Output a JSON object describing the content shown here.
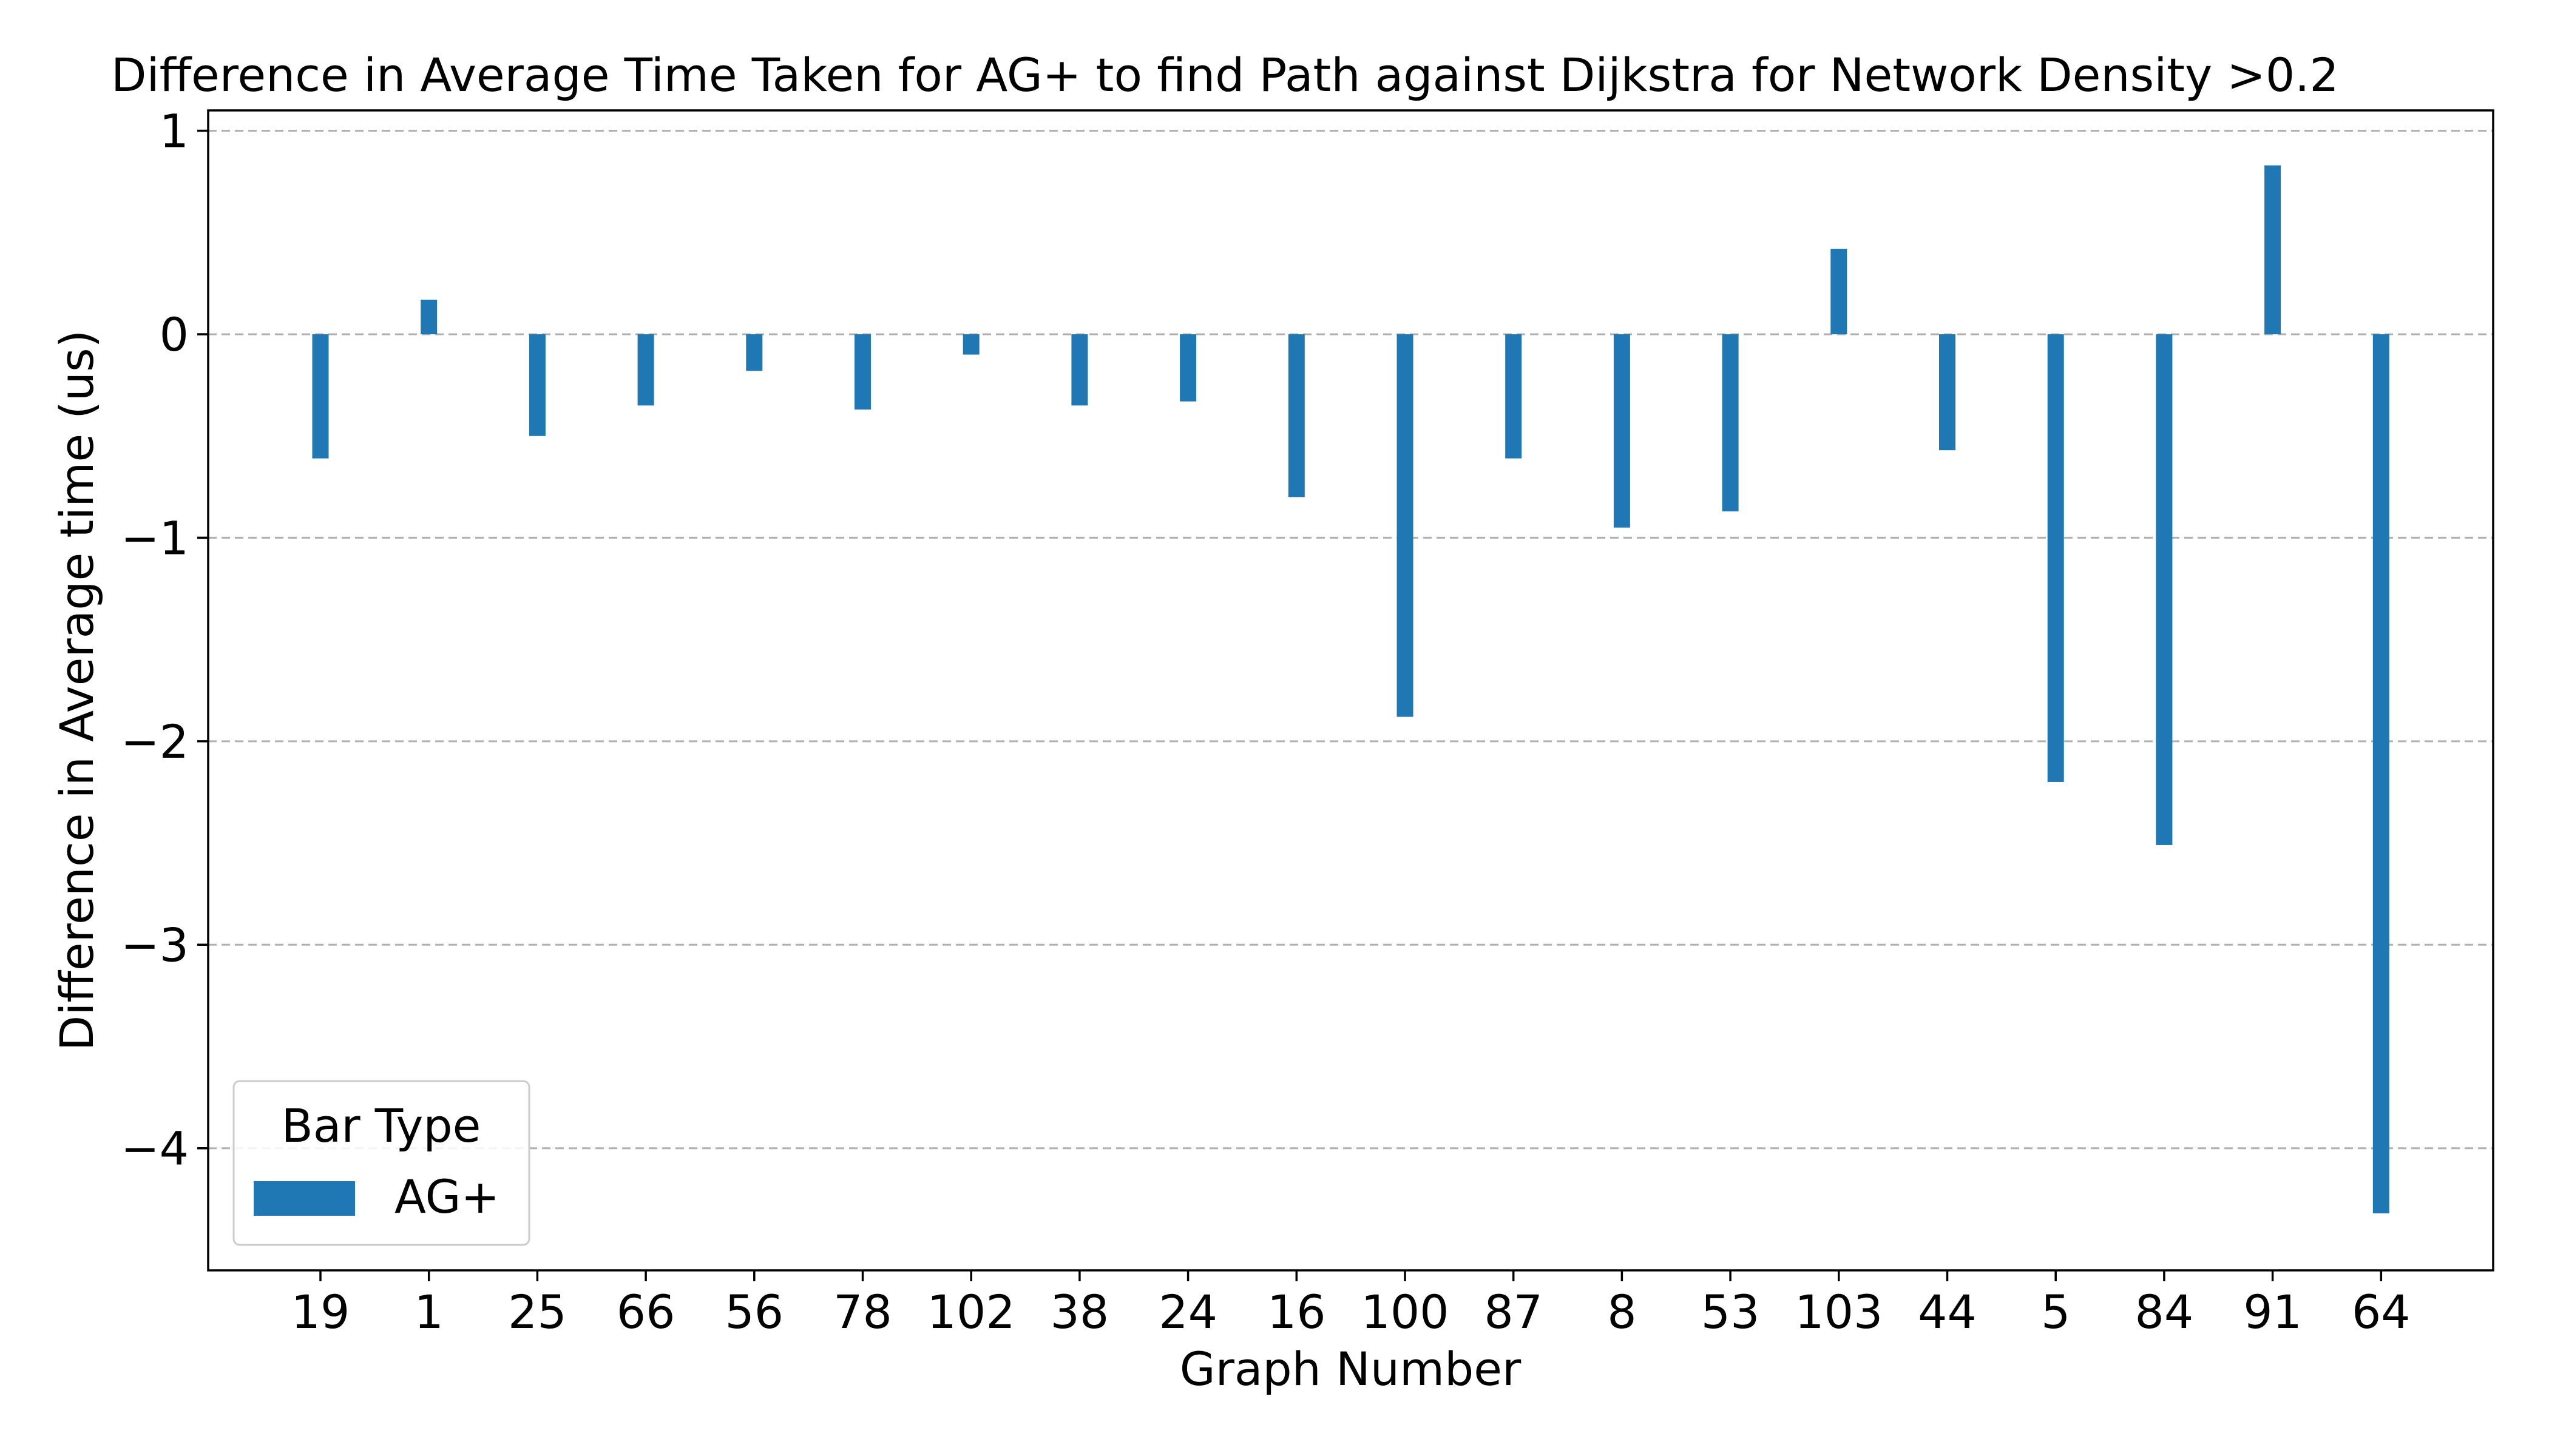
{
  "chart_data": {
    "type": "bar",
    "title": "Difference in Average Time Taken for AG+ to find Path against Dijkstra for Network Density >0.2",
    "xlabel": "Graph Number",
    "ylabel": "Difference in Average time (us)",
    "categories": [
      "19",
      "1",
      "25",
      "66",
      "56",
      "78",
      "102",
      "38",
      "24",
      "16",
      "100",
      "87",
      "8",
      "53",
      "103",
      "44",
      "5",
      "84",
      "91",
      "64"
    ],
    "series": [
      {
        "name": "AG+",
        "color": "#1f77b4",
        "values": [
          -0.61,
          0.17,
          -0.5,
          -0.35,
          -0.18,
          -0.37,
          -0.1,
          -0.35,
          -0.33,
          -0.8,
          -1.88,
          -0.61,
          -0.95,
          -0.87,
          0.42,
          -0.57,
          -2.2,
          -2.51,
          0.83,
          -4.32
        ]
      }
    ],
    "ylim": [
      -4.6,
      1.1
    ],
    "yticks": [
      1,
      0,
      -1,
      -2,
      -3,
      -4
    ],
    "ytick_labels": [
      "1",
      "0",
      "−1",
      "−2",
      "−3",
      "−4"
    ],
    "grid": "y-dashed",
    "legend": {
      "title": "Bar Type",
      "position": "lower-left",
      "entries": [
        "AG+"
      ]
    }
  }
}
